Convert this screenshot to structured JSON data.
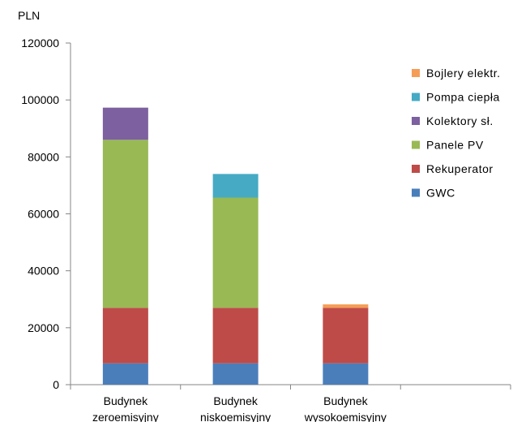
{
  "chart_data": {
    "type": "bar",
    "stacked": true,
    "unit_label": "PLN",
    "categories": [
      [
        "Budynek",
        "zeroemisyjny"
      ],
      [
        "Budynek",
        "niskoemisyjny"
      ],
      [
        "Budynek",
        "wysokoemisyjny"
      ],
      [
        "",
        ""
      ]
    ],
    "series": [
      {
        "name": "GWC",
        "color": "#4a7ebb",
        "values": [
          7500,
          7500,
          7500,
          0
        ]
      },
      {
        "name": "Rekuperator",
        "color": "#be4b48",
        "values": [
          19500,
          19500,
          19500,
          0
        ]
      },
      {
        "name": "Panele PV",
        "color": "#98b954",
        "values": [
          59000,
          38700,
          0,
          0
        ]
      },
      {
        "name": "Kolektory sł.",
        "color": "#7d60a0",
        "values": [
          11300,
          0,
          0,
          0
        ]
      },
      {
        "name": "Pompa ciepła",
        "color": "#46aac4",
        "values": [
          0,
          8300,
          0,
          0
        ]
      },
      {
        "name": "Bojlery elektr.",
        "color": "#f59d56",
        "values": [
          0,
          0,
          1200,
          0
        ]
      }
    ],
    "yticks": [
      0,
      20000,
      40000,
      60000,
      80000,
      100000,
      120000
    ],
    "ylim": [
      0,
      120000
    ],
    "legend_position": "right",
    "grid": false
  }
}
